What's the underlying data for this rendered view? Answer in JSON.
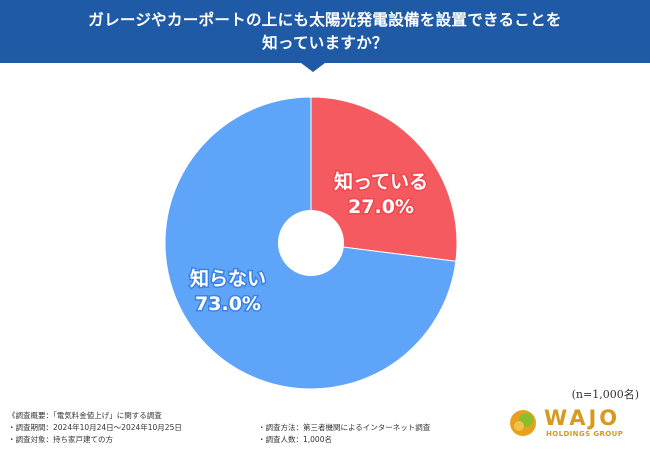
{
  "header": {
    "title_line1": "ガレージやカーポートの上にも太陽光発電設備を設置できることを",
    "title_line2": "知っていますか？"
  },
  "chart_data": {
    "type": "pie",
    "donut": true,
    "title": "ガレージやカーポートの上にも太陽光発電設備を設置できることを知っていますか？",
    "slices": [
      {
        "label": "知っている",
        "value": 27.0,
        "value_label": "27.0%",
        "color": "#f45a5f"
      },
      {
        "label": "知らない",
        "value": 73.0,
        "value_label": "73.0%",
        "color": "#5ea4f8"
      }
    ],
    "sample_note": "(n=1,000名)"
  },
  "notes": {
    "line1": "《調査概要：「電気料金値上げ」に関する調査",
    "line2": "・調査期間：2024年10月24日〜2024年10月25日",
    "line3": "・調査対象：持ち家戸建ての方",
    "line4": "・調査方法：第三者機関によるインターネット調査",
    "line5": "・調査人数：1,000名"
  },
  "logo": {
    "text": "WAJO",
    "subtext": "HOLDINGS GROUP",
    "color": "#d69a1f"
  }
}
